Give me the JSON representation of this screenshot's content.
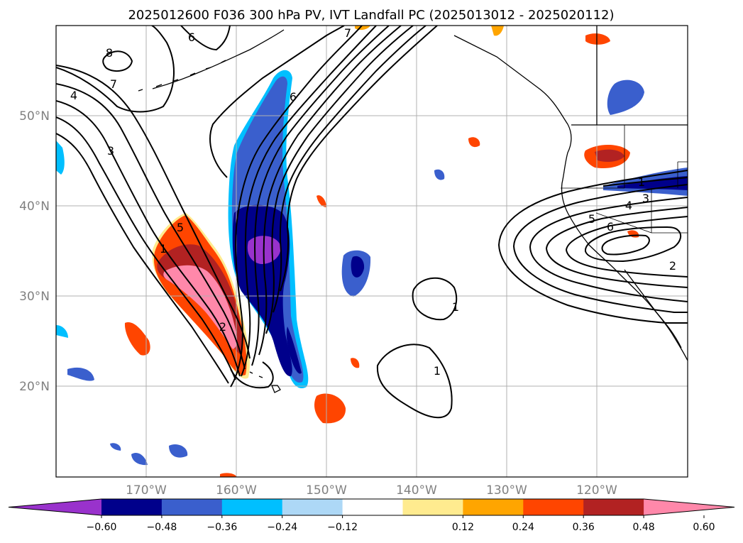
{
  "title": "2025012600 F036 300 hPa PV, IVT Landfall PC (2025013012 - 2025020112)",
  "latitude_labels": [
    "50°N",
    "40°N",
    "30°N",
    "20°N"
  ],
  "longitude_labels": [
    "170°W",
    "160°W",
    "150°W",
    "140°W",
    "130°W",
    "120°W"
  ],
  "colorbar": {
    "labels": [
      "−0.60",
      "−0.48",
      "−0.36",
      "−0.24",
      "−0.12",
      "0.12",
      "0.24",
      "0.36",
      "0.48",
      "0.60"
    ],
    "colors": [
      "#9932cc",
      "#00008b",
      "#3a5fcd",
      "#00bfff",
      "#add8f6",
      "#ffffff",
      "#ffeb8f",
      "#ffa500",
      "#ff4500",
      "#b22222",
      "#ff88aa"
    ]
  },
  "contour_labels": [
    "8",
    "7",
    "6",
    "4",
    "3",
    "5",
    "1",
    "2",
    "6",
    "7",
    "1",
    "1",
    "1",
    "4",
    "3",
    "5",
    "6",
    "2"
  ],
  "colors": {
    "contour": "#000000",
    "grid": "#b0b0b0",
    "coast": "#000000"
  }
}
